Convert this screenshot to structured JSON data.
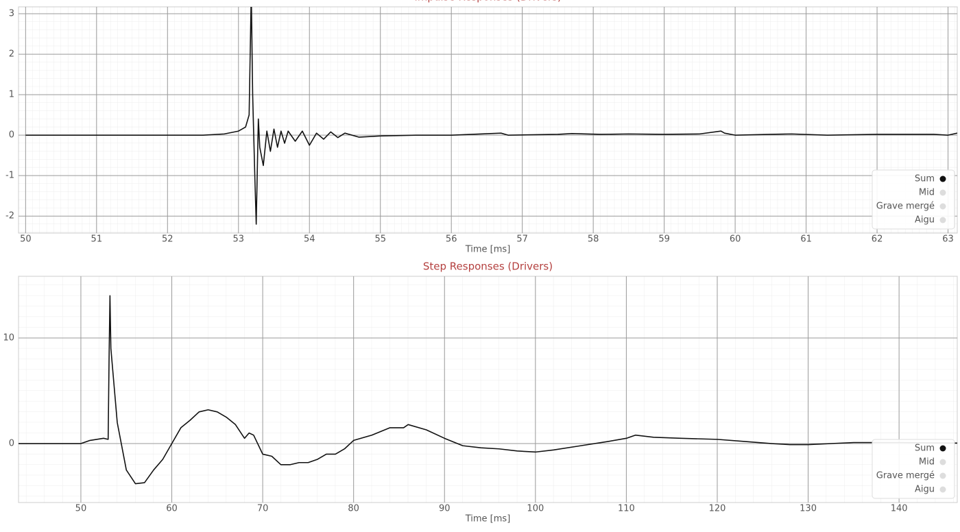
{
  "chart_data": [
    {
      "type": "line",
      "title": "Impulse Responses (Drivers)",
      "xlabel": "Time [ms]",
      "xlim": [
        49.9,
        63.13
      ],
      "ylim": [
        -2.42,
        3.17
      ],
      "xticks": [
        50,
        51,
        52,
        53,
        54,
        55,
        56,
        57,
        58,
        59,
        60,
        61,
        62,
        63
      ],
      "yticks": [
        -2,
        -1,
        0,
        1,
        2,
        3
      ],
      "grid": true,
      "legend": "lower right",
      "x": [
        50,
        52.5,
        52.8,
        53.0,
        53.1,
        53.15,
        53.18,
        53.2,
        53.23,
        53.25,
        53.28,
        53.3,
        53.35,
        53.4,
        53.45,
        53.5,
        53.55,
        53.6,
        53.65,
        53.7,
        53.8,
        53.9,
        54.0,
        54.1,
        54.2,
        54.3,
        54.4,
        54.5,
        54.7,
        55.0,
        55.5,
        56.0,
        56.7,
        56.8,
        57.5,
        57.7,
        58.1,
        58.5,
        59.0,
        59.5,
        59.8,
        59.85,
        60.0,
        60.5,
        60.8,
        61.3,
        62.0,
        62.8,
        63.0,
        63.13
      ],
      "series": [
        {
          "name": "Sum",
          "color": "#111111",
          "values": [
            0,
            0,
            0.03,
            0.1,
            0.2,
            0.5,
            3.5,
            1.0,
            -1.0,
            -2.2,
            0.4,
            -0.3,
            -0.75,
            0.1,
            -0.4,
            0.15,
            -0.3,
            0.1,
            -0.2,
            0.1,
            -0.15,
            0.1,
            -0.25,
            0.05,
            -0.1,
            0.08,
            -0.06,
            0.05,
            -0.05,
            -0.02,
            0.0,
            0.0,
            0.05,
            0.0,
            0.02,
            0.04,
            0.02,
            0.03,
            0.02,
            0.03,
            0.1,
            0.05,
            0.0,
            0.02,
            0.03,
            0.0,
            0.02,
            0.02,
            0.0,
            0.05
          ]
        },
        {
          "name": "Mid",
          "color": "#dddddd"
        },
        {
          "name": "Grave mergé",
          "color": "#dddddd"
        },
        {
          "name": "Aigu",
          "color": "#dddddd"
        }
      ]
    },
    {
      "type": "line",
      "title": "Step Responses (Drivers)",
      "xlabel": "Time [ms]",
      "xlim": [
        43.14,
        146.4
      ],
      "ylim": [
        -5.58,
        15.84
      ],
      "xticks": [
        50,
        60,
        70,
        80,
        90,
        100,
        110,
        120,
        130,
        140
      ],
      "yticks": [
        0,
        10
      ],
      "grid": true,
      "legend": "lower right",
      "x": [
        43.14,
        48,
        50,
        51,
        52.5,
        53,
        53.1,
        53.2,
        53.3,
        53.5,
        54,
        55,
        56,
        57,
        58,
        59,
        60,
        61,
        62,
        63,
        64,
        65,
        66,
        67,
        68,
        68.5,
        69,
        70,
        71,
        72,
        73,
        74,
        75,
        76,
        77,
        78,
        79,
        80,
        82,
        84,
        85.5,
        86,
        88,
        90,
        92,
        94,
        96,
        98,
        100,
        102,
        105,
        108,
        110,
        111,
        113,
        116,
        120,
        123,
        126,
        128,
        130,
        135,
        140,
        146.4
      ],
      "series": [
        {
          "name": "Sum",
          "color": "#111111",
          "values": [
            0,
            0,
            0,
            0.3,
            0.5,
            0.4,
            8,
            14,
            9,
            7,
            2,
            -2.5,
            -3.8,
            -3.7,
            -2.5,
            -1.5,
            0,
            1.5,
            2.2,
            3,
            3.2,
            3,
            2.5,
            1.8,
            0.5,
            1,
            0.8,
            -1,
            -1.2,
            -2,
            -2,
            -1.8,
            -1.8,
            -1.5,
            -1,
            -1,
            -0.5,
            0.3,
            0.8,
            1.5,
            1.5,
            1.8,
            1.3,
            0.5,
            -0.2,
            -0.4,
            -0.5,
            -0.7,
            -0.8,
            -0.6,
            -0.2,
            0.2,
            0.5,
            0.8,
            0.6,
            0.5,
            0.4,
            0.2,
            0.0,
            -0.1,
            -0.1,
            0.1,
            0.1,
            0.05
          ]
        },
        {
          "name": "Mid",
          "color": "#dddddd"
        },
        {
          "name": "Grave mergé",
          "color": "#dddddd"
        },
        {
          "name": "Aigu",
          "color": "#dddddd"
        }
      ]
    }
  ]
}
